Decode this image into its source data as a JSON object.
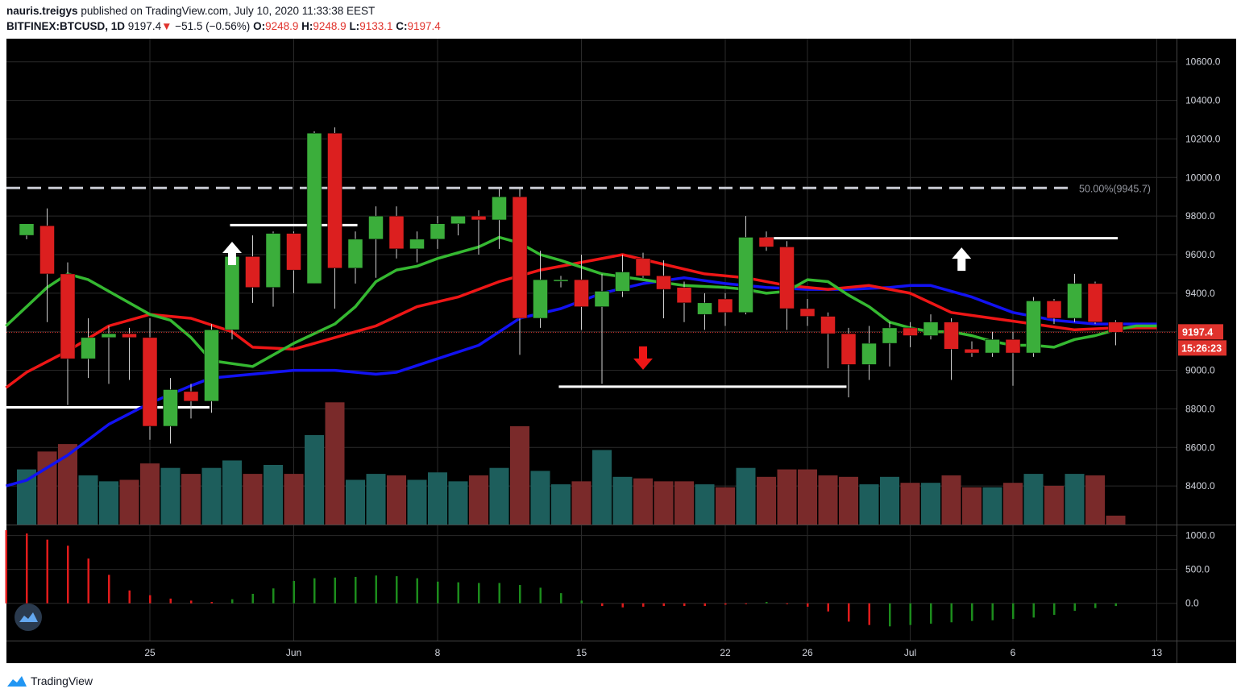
{
  "header": {
    "author": "nauris.treigys",
    "published": "published on TradingView.com, July 10, 2020 11:33:38 EEST",
    "symbol": "BITFINEX:BTCUSD, 1D",
    "last": "9197.4",
    "change_arrow": "▼",
    "change": "−51.5 (−0.56%)",
    "open_label": "O:",
    "open": "9248.9",
    "high_label": "H:",
    "high": "9248.9",
    "low_label": "L:",
    "low": "9133.1",
    "close_label": "C:",
    "close": "9197.4"
  },
  "footer": {
    "brand": "TradingView",
    "logo_icon": "tradingview-logo-icon"
  },
  "colors": {
    "up": "#3bae3b",
    "down": "#dc1f1f",
    "vol_up": "#1d5e5c",
    "vol_down": "#7a2a2a",
    "ma_blue": "#1212f2",
    "ma_red": "#ee1616",
    "ma_green": "#35b831",
    "background": "#000000",
    "grid": "#2a2a2a"
  },
  "chart_data": {
    "type": "candlestick",
    "symbol": "BITFINEX:BTCUSD",
    "interval": "1D",
    "price_axis_ticks": [
      "10600.0",
      "10400.0",
      "10200.0",
      "10000.0",
      "9800.0",
      "9600.0",
      "9400.0",
      "9200.0",
      "9000.0",
      "8800.0",
      "8600.0",
      "8400.0"
    ],
    "price_range": [
      8200,
      10720
    ],
    "x_tick_labels": [
      {
        "label": "25",
        "day": 6
      },
      {
        "label": "Jun",
        "day": 13
      },
      {
        "label": "8",
        "day": 20
      },
      {
        "label": "15",
        "day": 27
      },
      {
        "label": "22",
        "day": 34
      },
      {
        "label": "26",
        "day": 38
      },
      {
        "label": "Jul",
        "day": 43
      },
      {
        "label": "6",
        "day": 48
      },
      {
        "label": "13",
        "day": 55
      }
    ],
    "candles": [
      [
        9700,
        9760,
        9680,
        9760
      ],
      [
        9750,
        9840,
        9250,
        9500
      ],
      [
        9500,
        9560,
        8820,
        9060
      ],
      [
        9060,
        9270,
        8960,
        9170
      ],
      [
        9170,
        9230,
        8930,
        9190
      ],
      [
        9190,
        9220,
        8950,
        9170
      ],
      [
        9170,
        9270,
        8640,
        8710
      ],
      [
        8710,
        8960,
        8620,
        8900
      ],
      [
        8890,
        8930,
        8750,
        8840
      ],
      [
        8840,
        9240,
        8780,
        9210
      ],
      [
        9210,
        9640,
        9160,
        9590
      ],
      [
        9590,
        9700,
        9350,
        9430
      ],
      [
        9430,
        9720,
        9330,
        9710
      ],
      [
        9710,
        9720,
        9400,
        9520
      ],
      [
        9450,
        10240,
        9450,
        10230
      ],
      [
        10230,
        10260,
        9320,
        9530
      ],
      [
        9530,
        9720,
        9450,
        9680
      ],
      [
        9680,
        9850,
        9480,
        9800
      ],
      [
        9800,
        9850,
        9580,
        9630
      ],
      [
        9630,
        9720,
        9560,
        9680
      ],
      [
        9680,
        9800,
        9630,
        9760
      ],
      [
        9760,
        9790,
        9700,
        9800
      ],
      [
        9800,
        9830,
        9600,
        9780
      ],
      [
        9780,
        9940,
        9630,
        9900
      ],
      [
        9900,
        9950,
        9080,
        9270
      ],
      [
        9270,
        9620,
        9220,
        9470
      ],
      [
        9470,
        9490,
        9430,
        9470
      ],
      [
        9470,
        9600,
        9210,
        9330
      ],
      [
        9330,
        9500,
        8930,
        9410
      ],
      [
        9410,
        9600,
        9380,
        9510
      ],
      [
        9580,
        9610,
        9480,
        9490
      ],
      [
        9490,
        9570,
        9270,
        9420
      ],
      [
        9430,
        9460,
        9250,
        9350
      ],
      [
        9290,
        9400,
        9210,
        9350
      ],
      [
        9370,
        9400,
        9230,
        9300
      ],
      [
        9300,
        9800,
        9290,
        9690
      ],
      [
        9690,
        9720,
        9620,
        9640
      ],
      [
        9640,
        9670,
        9210,
        9320
      ],
      [
        9320,
        9370,
        9230,
        9280
      ],
      [
        9280,
        9300,
        9010,
        9190
      ],
      [
        9190,
        9220,
        8860,
        9030
      ],
      [
        9030,
        9230,
        8950,
        9140
      ],
      [
        9140,
        9250,
        9020,
        9220
      ],
      [
        9220,
        9250,
        9120,
        9180
      ],
      [
        9180,
        9290,
        9160,
        9250
      ],
      [
        9250,
        9270,
        8950,
        9110
      ],
      [
        9110,
        9150,
        9070,
        9090
      ],
      [
        9090,
        9200,
        9070,
        9160
      ],
      [
        9160,
        9200,
        8920,
        9090
      ],
      [
        9090,
        9380,
        9070,
        9360
      ],
      [
        9360,
        9370,
        9240,
        9270
      ],
      [
        9270,
        9500,
        9250,
        9450
      ],
      [
        9450,
        9460,
        9240,
        9250
      ],
      [
        9250,
        9260,
        9130,
        9197.4
      ]
    ],
    "volumes": [
      370,
      490,
      540,
      330,
      290,
      300,
      410,
      380,
      340,
      380,
      430,
      340,
      400,
      340,
      600,
      820,
      300,
      340,
      330,
      300,
      350,
      290,
      330,
      380,
      660,
      360,
      270,
      290,
      500,
      320,
      310,
      290,
      290,
      270,
      250,
      380,
      320,
      370,
      370,
      330,
      320,
      270,
      320,
      280,
      280,
      330,
      250,
      250,
      280,
      340,
      260,
      340,
      330,
      60
    ],
    "ma_blue": [
      [
        -1,
        8400
      ],
      [
        0,
        8430
      ],
      [
        2,
        8560
      ],
      [
        4,
        8720
      ],
      [
        6,
        8830
      ],
      [
        8,
        8920
      ],
      [
        9,
        8960
      ],
      [
        10,
        8970
      ],
      [
        12,
        8990
      ],
      [
        13,
        9000
      ],
      [
        15,
        9000
      ],
      [
        17,
        8980
      ],
      [
        18,
        8990
      ],
      [
        20,
        9060
      ],
      [
        22,
        9130
      ],
      [
        24,
        9270
      ],
      [
        26,
        9320
      ],
      [
        28,
        9400
      ],
      [
        30,
        9450
      ],
      [
        32,
        9480
      ],
      [
        34,
        9450
      ],
      [
        36,
        9430
      ],
      [
        38,
        9420
      ],
      [
        40,
        9420
      ],
      [
        42,
        9430
      ],
      [
        43,
        9440
      ],
      [
        44,
        9440
      ],
      [
        46,
        9380
      ],
      [
        48,
        9300
      ],
      [
        50,
        9260
      ],
      [
        52,
        9240
      ],
      [
        54,
        9240
      ],
      [
        55,
        9240
      ]
    ],
    "ma_red": [
      [
        -1,
        8910
      ],
      [
        0,
        8990
      ],
      [
        2,
        9100
      ],
      [
        4,
        9230
      ],
      [
        6,
        9290
      ],
      [
        8,
        9270
      ],
      [
        10,
        9200
      ],
      [
        11,
        9120
      ],
      [
        13,
        9110
      ],
      [
        15,
        9170
      ],
      [
        17,
        9230
      ],
      [
        19,
        9330
      ],
      [
        21,
        9380
      ],
      [
        23,
        9460
      ],
      [
        25,
        9520
      ],
      [
        27,
        9560
      ],
      [
        29,
        9600
      ],
      [
        31,
        9550
      ],
      [
        33,
        9500
      ],
      [
        35,
        9480
      ],
      [
        37,
        9440
      ],
      [
        39,
        9420
      ],
      [
        41,
        9440
      ],
      [
        43,
        9400
      ],
      [
        45,
        9300
      ],
      [
        47,
        9270
      ],
      [
        49,
        9240
      ],
      [
        51,
        9210
      ],
      [
        53,
        9220
      ],
      [
        55,
        9220
      ]
    ],
    "ma_green": [
      [
        -1,
        9230
      ],
      [
        0,
        9330
      ],
      [
        1,
        9430
      ],
      [
        2,
        9500
      ],
      [
        3,
        9470
      ],
      [
        4,
        9410
      ],
      [
        6,
        9290
      ],
      [
        7,
        9260
      ],
      [
        8,
        9170
      ],
      [
        9,
        9050
      ],
      [
        11,
        9020
      ],
      [
        13,
        9140
      ],
      [
        15,
        9240
      ],
      [
        16,
        9330
      ],
      [
        17,
        9460
      ],
      [
        18,
        9520
      ],
      [
        19,
        9540
      ],
      [
        20,
        9580
      ],
      [
        22,
        9640
      ],
      [
        23,
        9690
      ],
      [
        24,
        9660
      ],
      [
        25,
        9600
      ],
      [
        26,
        9570
      ],
      [
        28,
        9500
      ],
      [
        30,
        9470
      ],
      [
        32,
        9440
      ],
      [
        34,
        9430
      ],
      [
        35,
        9420
      ],
      [
        36,
        9400
      ],
      [
        37,
        9410
      ],
      [
        38,
        9470
      ],
      [
        39,
        9460
      ],
      [
        40,
        9390
      ],
      [
        41,
        9330
      ],
      [
        42,
        9250
      ],
      [
        43,
        9220
      ],
      [
        44,
        9200
      ],
      [
        45,
        9200
      ],
      [
        46,
        9180
      ],
      [
        47,
        9150
      ],
      [
        48,
        9130
      ],
      [
        49,
        9130
      ],
      [
        50,
        9120
      ],
      [
        51,
        9160
      ],
      [
        52,
        9180
      ],
      [
        53,
        9210
      ],
      [
        54,
        9230
      ],
      [
        55,
        9230
      ]
    ],
    "macd_histogram": [
      1080,
      1030,
      940,
      850,
      660,
      420,
      190,
      120,
      70,
      40,
      20,
      60,
      140,
      220,
      330,
      370,
      380,
      390,
      410,
      400,
      370,
      320,
      310,
      300,
      300,
      270,
      230,
      150,
      40,
      -40,
      -60,
      -50,
      -40,
      -40,
      -40,
      -20,
      -10,
      20,
      -10,
      -50,
      -120,
      -270,
      -320,
      -340,
      -320,
      -300,
      -280,
      -260,
      -250,
      -230,
      -210,
      -170,
      -110,
      -70,
      -40
    ],
    "macd_axis_ticks": [
      "1000.0",
      "500.0",
      "0.0"
    ],
    "macd_range": [
      -550,
      1150
    ],
    "fib_level_label": "50.00%(9945.7)",
    "fib_level": 9945.7,
    "price_label": "9197.4",
    "countdown": "15:26:23",
    "support_resistance": [
      {
        "from": -1,
        "to": 8.9,
        "price": 8808
      },
      {
        "from": 9.9,
        "to": 16.1,
        "price": 9753
      },
      {
        "from": 25.9,
        "to": 39.9,
        "price": 8915
      },
      {
        "from": 35.9,
        "to": 53.1,
        "price": 9685
      }
    ],
    "signal_arrows": [
      {
        "day": 10,
        "price": 9600,
        "dir": "up",
        "color": "#ffffff"
      },
      {
        "day": 30,
        "price": 9070,
        "dir": "down",
        "color": "#ee1616"
      },
      {
        "day": 45.5,
        "price": 9570,
        "dir": "up",
        "color": "#ffffff"
      }
    ]
  }
}
